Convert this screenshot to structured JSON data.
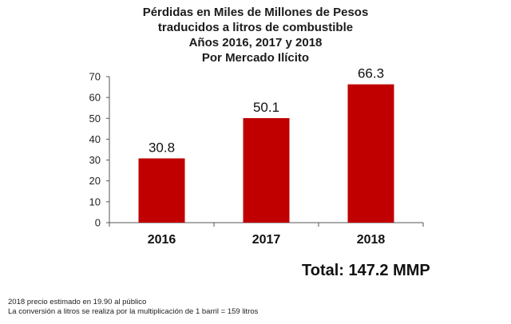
{
  "chart_data": {
    "type": "bar",
    "title_lines": [
      "Pérdidas en Miles de Millones de Pesos",
      "traducidos a litros de combustible",
      "Años 2016, 2017 y 2018",
      "Por Mercado Ilícito"
    ],
    "categories": [
      "2016",
      "2017",
      "2018"
    ],
    "values": [
      30.8,
      50.1,
      66.3
    ],
    "data_labels": [
      "30.8",
      "50.1",
      "66.3"
    ],
    "ylim": [
      0,
      70
    ],
    "yticks": [
      0,
      10,
      20,
      30,
      40,
      50,
      60,
      70
    ],
    "bar_color": "#c00000",
    "grid": false,
    "legend": "none"
  },
  "total_label": "Total: 147.2 MMP",
  "footnotes": [
    "2018 precio estimado en 19.90 al público",
    "La conversión a litros se realiza por la multiplicación de 1 barril = 159 litros"
  ]
}
